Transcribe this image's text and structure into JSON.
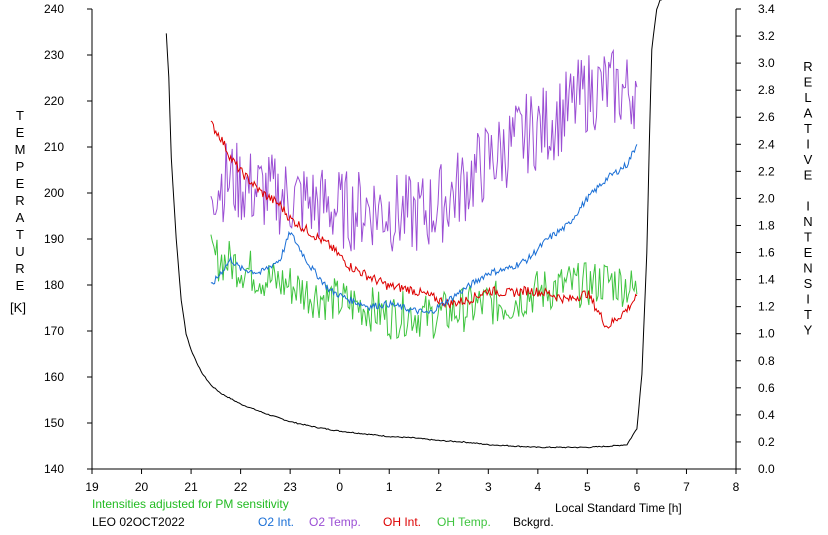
{
  "chart_data": {
    "type": "line",
    "title": "",
    "station": "LEO 02OCT2022",
    "note": "Intensities adjusted for PM sensitivity",
    "xlabel": "Local Standard Time [h]",
    "ylabel_left": [
      "T",
      "E",
      "M",
      "P",
      "E",
      "R",
      "A",
      "T",
      "U",
      "R",
      "E"
    ],
    "ylabel_left_unit": "[K]",
    "ylabel_right": [
      "R",
      "E",
      "L",
      "A",
      "T",
      "I",
      "V",
      "E",
      "",
      "I",
      "N",
      "T",
      "E",
      "N",
      "S",
      "I",
      "T",
      "Y"
    ],
    "xlim": [
      19,
      32
    ],
    "x_tick_values": [
      19,
      20,
      21,
      22,
      23,
      24,
      25,
      26,
      27,
      28,
      29,
      30,
      31,
      32
    ],
    "x_tick_labels": [
      "19",
      "20",
      "21",
      "22",
      "23",
      "0",
      "1",
      "2",
      "3",
      "4",
      "5",
      "6",
      "7",
      "8"
    ],
    "ylim_left": [
      140,
      240
    ],
    "y_left_ticks": [
      "140",
      "150",
      "160",
      "170",
      "180",
      "190",
      "200",
      "210",
      "220",
      "230",
      "240"
    ],
    "ylim_right": [
      0.0,
      3.4
    ],
    "y_right_ticks": [
      "0.0",
      "0.2",
      "0.4",
      "0.6",
      "0.8",
      "1.0",
      "1.2",
      "1.4",
      "1.6",
      "1.8",
      "2.0",
      "2.2",
      "2.4",
      "2.6",
      "2.8",
      "3.0",
      "3.2",
      "3.4"
    ],
    "grid": false,
    "colors": {
      "o2_int": "#1a6fd6",
      "o2_temp": "#9b4fd4",
      "oh_int": "#dd0000",
      "oh_temp": "#3fc43f",
      "bckgrd": "#000000",
      "note": "#22bb22"
    },
    "legend": [
      {
        "key": "o2_int",
        "label": "O2 Int."
      },
      {
        "key": "o2_temp",
        "label": "O2 Temp."
      },
      {
        "key": "oh_int",
        "label": "OH Int."
      },
      {
        "key": "oh_temp",
        "label": "OH Temp."
      },
      {
        "key": "bckgrd",
        "label": "Bckgrd."
      }
    ],
    "series": [
      {
        "key": "o2_temp",
        "axis": "left",
        "x": [
          21.4,
          21.8,
          22.2,
          22.6,
          23.0,
          23.4,
          23.8,
          24.2,
          24.6,
          25.0,
          25.4,
          25.8,
          26.2,
          26.6,
          27.0,
          27.4,
          27.8,
          28.2,
          28.6,
          29.0,
          29.4,
          29.8,
          30.0
        ],
        "y": [
          202,
          203,
          201,
          200,
          199,
          198,
          197,
          196,
          197,
          196,
          195,
          196,
          199,
          203,
          207,
          210,
          213,
          215,
          218,
          222,
          223,
          222,
          223
        ]
      },
      {
        "key": "oh_temp",
        "axis": "left",
        "x": [
          21.4,
          21.8,
          22.2,
          22.6,
          23.0,
          23.4,
          23.8,
          24.2,
          24.6,
          25.0,
          25.4,
          25.8,
          26.2,
          26.6,
          27.0,
          27.4,
          27.8,
          28.2,
          28.6,
          29.0,
          29.4,
          29.8,
          30.0
        ],
        "y": [
          186,
          185,
          183,
          181,
          180,
          178,
          177,
          176,
          175,
          173,
          174,
          173,
          174,
          175,
          176,
          176,
          178,
          179,
          180,
          180,
          181,
          180,
          178
        ]
      },
      {
        "key": "o2_int",
        "axis": "right",
        "x": [
          21.4,
          21.6,
          21.8,
          22.0,
          22.4,
          22.8,
          23.0,
          23.4,
          23.8,
          24.2,
          24.6,
          25.0,
          25.4,
          25.8,
          26.2,
          26.6,
          27.0,
          27.4,
          27.8,
          28.2,
          28.6,
          29.0,
          29.4,
          29.8,
          30.0
        ],
        "y": [
          1.35,
          1.45,
          1.55,
          1.48,
          1.45,
          1.55,
          1.75,
          1.5,
          1.32,
          1.25,
          1.2,
          1.22,
          1.18,
          1.15,
          1.25,
          1.35,
          1.45,
          1.48,
          1.55,
          1.7,
          1.8,
          2.0,
          2.15,
          2.25,
          2.4
        ]
      },
      {
        "key": "oh_int",
        "axis": "right",
        "x": [
          21.4,
          21.6,
          21.8,
          22.0,
          22.4,
          22.8,
          23.0,
          23.4,
          23.8,
          24.2,
          24.6,
          25.0,
          25.4,
          25.8,
          26.2,
          26.6,
          27.0,
          27.4,
          27.8,
          28.2,
          28.6,
          29.0,
          29.4,
          29.8,
          30.0
        ],
        "y": [
          2.55,
          2.45,
          2.3,
          2.2,
          2.05,
          1.95,
          1.85,
          1.75,
          1.65,
          1.5,
          1.42,
          1.35,
          1.33,
          1.28,
          1.22,
          1.25,
          1.32,
          1.3,
          1.32,
          1.3,
          1.25,
          1.3,
          1.05,
          1.18,
          1.28
        ]
      },
      {
        "key": "bckgrd",
        "axis": "right",
        "x": [
          20.5,
          20.55,
          20.6,
          20.7,
          20.8,
          20.9,
          21.0,
          21.2,
          21.4,
          21.6,
          21.8,
          22.0,
          22.5,
          23.0,
          23.5,
          24.0,
          24.5,
          25.0,
          25.5,
          26.0,
          26.5,
          27.0,
          27.5,
          28.0,
          28.5,
          29.0,
          29.5,
          29.8,
          30.0,
          30.1,
          30.2,
          30.25,
          30.3,
          30.4,
          30.5
        ],
        "y": [
          3.22,
          2.9,
          2.3,
          1.7,
          1.25,
          1.0,
          0.88,
          0.72,
          0.62,
          0.56,
          0.52,
          0.48,
          0.41,
          0.35,
          0.31,
          0.28,
          0.26,
          0.24,
          0.23,
          0.21,
          0.2,
          0.18,
          0.17,
          0.16,
          0.16,
          0.16,
          0.17,
          0.18,
          0.3,
          0.7,
          1.6,
          2.4,
          3.1,
          3.4,
          3.5
        ]
      }
    ]
  }
}
